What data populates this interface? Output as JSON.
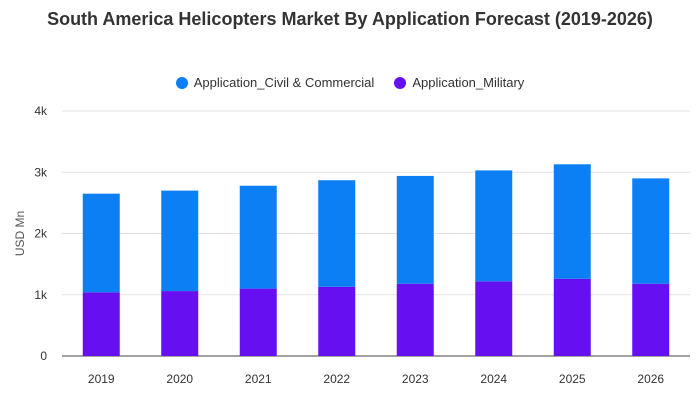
{
  "chart_data": {
    "type": "bar",
    "stacked": true,
    "title": "South America Helicopters Market By Application Forecast (2019-2026)",
    "xlabel": "",
    "ylabel": "USD Mn",
    "ylim": [
      0,
      4000
    ],
    "yticks": [
      0,
      1000,
      2000,
      3000,
      4000
    ],
    "ytick_labels": [
      "0",
      "1k",
      "2k",
      "3k",
      "4k"
    ],
    "grid": true,
    "legend_position": "top-center",
    "categories": [
      "2019",
      "2020",
      "2021",
      "2022",
      "2023",
      "2024",
      "2025",
      "2026"
    ],
    "series": [
      {
        "name": "Application_Military",
        "color": "#6610f2",
        "values": [
          1040,
          1060,
          1100,
          1130,
          1180,
          1220,
          1260,
          1180
        ]
      },
      {
        "name": "Application_Civil & Commercial",
        "color": "#0d7ff5",
        "values": [
          1610,
          1640,
          1680,
          1740,
          1760,
          1810,
          1870,
          1720
        ]
      }
    ],
    "legend_order": [
      "Application_Civil & Commercial",
      "Application_Military"
    ]
  }
}
